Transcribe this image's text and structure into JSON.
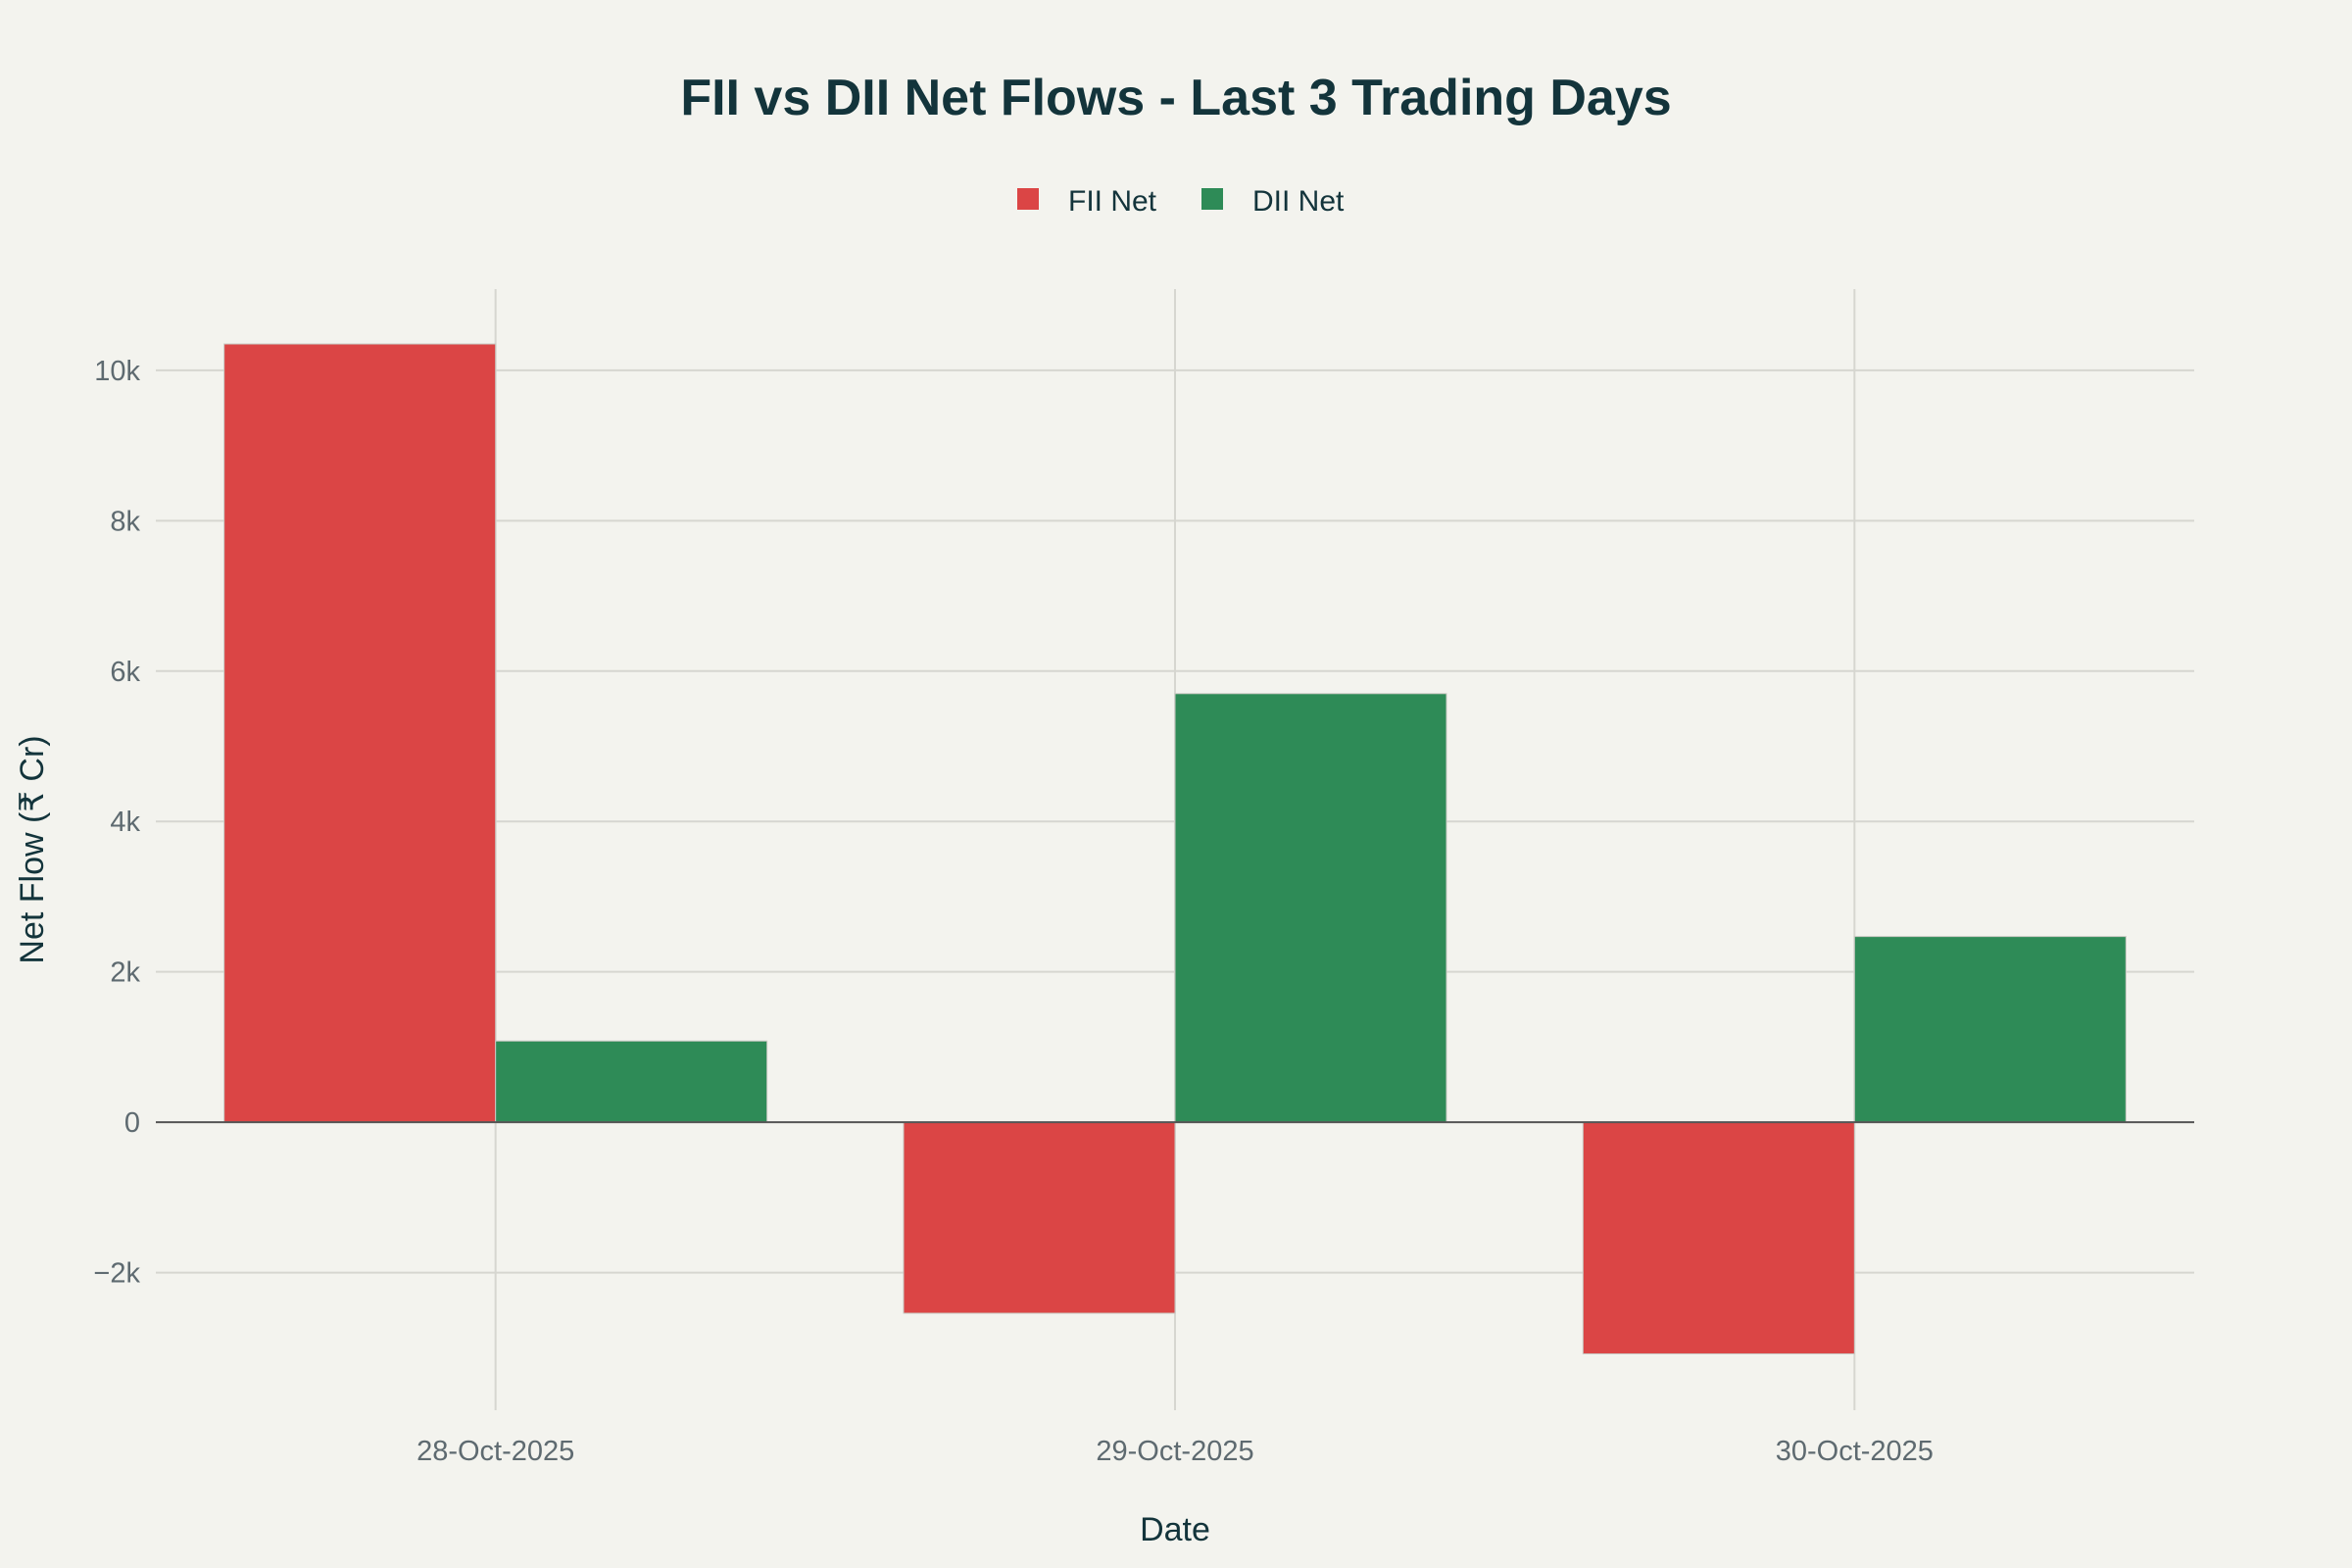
{
  "chart_data": {
    "type": "bar",
    "title": "FII vs DII Net Flows - Last 3 Trading Days",
    "xlabel": "Date",
    "ylabel": "Net Flow (₹ Cr)",
    "categories": [
      "28-Oct-2025",
      "29-Oct-2025",
      "30-Oct-2025"
    ],
    "series": [
      {
        "name": "FII Net",
        "color": "#db4545",
        "values": [
          10350,
          -2540,
          -3080
        ]
      },
      {
        "name": "DII Net",
        "color": "#2e8b57",
        "values": [
          1080,
          5700,
          2470
        ]
      }
    ],
    "ylim": [
      -3830,
      11080
    ],
    "yticks": [
      -2000,
      0,
      2000,
      4000,
      6000,
      8000,
      10000
    ],
    "ytick_labels": [
      "−2k",
      "0",
      "2k",
      "4k",
      "6k",
      "8k",
      "10k"
    ],
    "grid": true,
    "legend_position": "top-center",
    "background": "#f3f3ee"
  }
}
